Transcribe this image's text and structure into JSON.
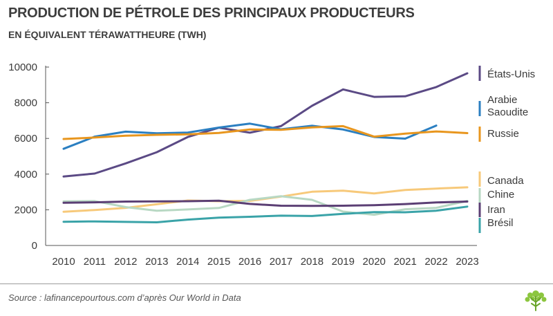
{
  "header": {
    "title": "PRODUCTION DE PÉTROLE DES PRINCIPAUX PRODUCTEURS",
    "subtitle": "EN ÉQUIVALENT TÉRAWATTHEURE (TWH)"
  },
  "footer": {
    "source": "Source : lafinancepourtous.com d’après Our World in Data",
    "logo_icon": "tree-icon"
  },
  "chart_data": {
    "type": "line",
    "title": "PRODUCTION DE PÉTROLE DES PRINCIPAUX PRODUCTEURS",
    "subtitle": "EN ÉQUIVALENT TÉRAWATTHEURE (TWH)",
    "xlabel": "",
    "ylabel": "",
    "x": [
      "2010",
      "2011",
      "2012",
      "2013",
      "2014",
      "2015",
      "2016",
      "2017",
      "2018",
      "2019",
      "2020",
      "2021",
      "2022",
      "2023"
    ],
    "ylim": [
      0,
      10000
    ],
    "yticks": [
      "0",
      "2000",
      "4000",
      "6000",
      "8000",
      "10000"
    ],
    "grid": false,
    "legend": "right",
    "series": [
      {
        "name": "États-Unis",
        "color": "#5b4a85",
        "values": [
          3870,
          4030,
          4600,
          5230,
          6080,
          6600,
          6320,
          6690,
          7830,
          8750,
          8330,
          8360,
          8880,
          9650
        ]
      },
      {
        "name": "Arabie Saoudite",
        "color": "#2b7fc1",
        "values": [
          5420,
          6100,
          6380,
          6290,
          6330,
          6610,
          6830,
          6510,
          6710,
          6500,
          6080,
          5990,
          6720,
          null
        ]
      },
      {
        "name": "Russie",
        "color": "#e8961e",
        "values": [
          5970,
          6050,
          6150,
          6200,
          6230,
          6310,
          6500,
          6480,
          6620,
          6690,
          6100,
          6270,
          6390,
          6300
        ]
      },
      {
        "name": "Canada",
        "color": "#f7c97a",
        "values": [
          1890,
          1990,
          2110,
          2310,
          2520,
          2480,
          2500,
          2740,
          3010,
          3070,
          2920,
          3110,
          3190,
          3260
        ]
      },
      {
        "name": "Chine",
        "color": "#b8d8c3",
        "values": [
          2470,
          2490,
          2150,
          1950,
          2020,
          2100,
          2560,
          2760,
          2560,
          1900,
          1720,
          2030,
          2110,
          2500
        ]
      },
      {
        "name": "Iran",
        "color": "#5b3f74",
        "values": [
          2390,
          2420,
          2460,
          2470,
          2480,
          2510,
          2330,
          2230,
          2220,
          2230,
          2260,
          2320,
          2410,
          2460
        ]
      },
      {
        "name": "Brésil",
        "color": "#3aa3a8",
        "values": [
          1330,
          1350,
          1320,
          1300,
          1450,
          1560,
          1610,
          1670,
          1650,
          1770,
          1870,
          1860,
          1950,
          2180
        ]
      }
    ],
    "legend_entries": [
      {
        "lines": [
          "États-Unis"
        ],
        "color": "#5b4a85"
      },
      {
        "lines": [
          "Arabie",
          "Saoudite"
        ],
        "color": "#2b7fc1"
      },
      {
        "lines": [
          "Russie"
        ],
        "color": "#e8961e"
      },
      {
        "lines": [
          "Canada"
        ],
        "color": "#f7c97a"
      },
      {
        "lines": [
          "Chine"
        ],
        "color": "#b8d8c3"
      },
      {
        "lines": [
          "Iran"
        ],
        "color": "#5b3f74"
      },
      {
        "lines": [
          "Brésil"
        ],
        "color": "#3aa3a8"
      }
    ]
  }
}
